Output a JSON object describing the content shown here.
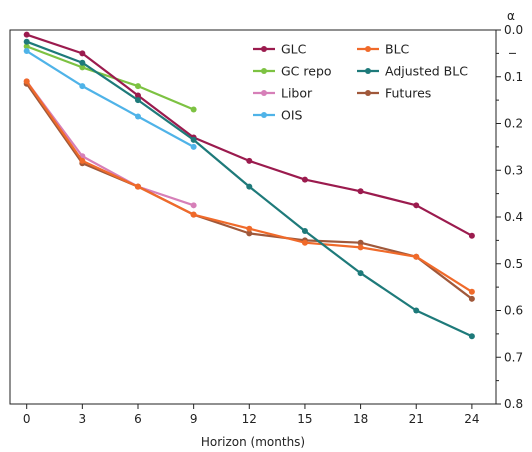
{
  "chart_data": {
    "type": "line",
    "xlabel": "Horizon (months)",
    "ylabel": "α",
    "x": [
      0,
      3,
      6,
      9,
      12,
      15,
      18,
      21,
      24
    ],
    "xlim": [
      -0.9,
      25.3
    ],
    "ylim": [
      0.0,
      0.8
    ],
    "y_reversed": true,
    "y_ticks": [
      "0.0",
      "0.1",
      "0.2",
      "0.3",
      "0.4",
      "0.5",
      "0.6",
      "0.7",
      "0.8"
    ],
    "y_axis_side": "right",
    "grid": false,
    "legend_placement": "top-right, two columns",
    "series": [
      {
        "name": "GLC",
        "color": "#9b1b4e",
        "x": [
          0,
          3,
          6,
          9,
          12,
          15,
          18,
          21,
          24
        ],
        "values": [
          0.01,
          0.05,
          0.14,
          0.23,
          0.28,
          0.32,
          0.345,
          0.375,
          0.44
        ]
      },
      {
        "name": "BLC",
        "color": "#f06a2a",
        "x": [
          0,
          3,
          6,
          9,
          12,
          15,
          18,
          21,
          24
        ],
        "values": [
          0.11,
          0.28,
          0.335,
          0.395,
          0.425,
          0.455,
          0.465,
          0.485,
          0.56
        ]
      },
      {
        "name": "GC repo",
        "color": "#7dc242",
        "x": [
          0,
          3,
          6,
          9
        ],
        "values": [
          0.035,
          0.08,
          0.12,
          0.17
        ]
      },
      {
        "name": "Adjusted BLC",
        "color": "#1e7a7a",
        "x": [
          0,
          3,
          6,
          9,
          12,
          15,
          18,
          21,
          24
        ],
        "values": [
          0.025,
          0.07,
          0.15,
          0.235,
          0.335,
          0.43,
          0.52,
          0.6,
          0.655
        ]
      },
      {
        "name": "Libor",
        "color": "#d67fb8",
        "x": [
          0,
          3,
          6,
          9
        ],
        "values": [
          0.11,
          0.27,
          0.335,
          0.375
        ]
      },
      {
        "name": "Futures",
        "color": "#a0583a",
        "x": [
          0,
          3,
          6,
          9,
          12,
          15,
          18,
          21,
          24
        ],
        "values": [
          0.115,
          0.285,
          0.335,
          0.395,
          0.435,
          0.45,
          0.455,
          0.485,
          0.575
        ]
      },
      {
        "name": "OIS",
        "color": "#4fb3e8",
        "x": [
          0,
          3,
          6,
          9
        ],
        "values": [
          0.045,
          0.12,
          0.185,
          0.25
        ]
      }
    ]
  }
}
